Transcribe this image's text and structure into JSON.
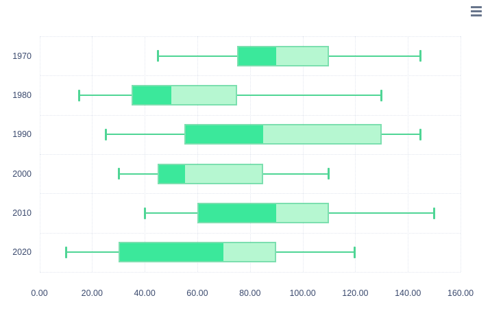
{
  "menu": {
    "icon": "hamburger-menu-icon"
  },
  "chart_data": {
    "type": "boxplot",
    "orientation": "horizontal",
    "title": "",
    "xlabel": "",
    "ylabel": "",
    "categories": [
      "1970",
      "1980",
      "1990",
      "2000",
      "2010",
      "2020"
    ],
    "series": [
      {
        "name": "boxplot",
        "stats_order": [
          "min",
          "q1",
          "median",
          "q3",
          "max"
        ],
        "values": [
          [
            45,
            75,
            90,
            110,
            145
          ],
          [
            15,
            35,
            50,
            75,
            130
          ],
          [
            25,
            55,
            85,
            130,
            145
          ],
          [
            30,
            45,
            55,
            85,
            110
          ],
          [
            40,
            60,
            90,
            110,
            150
          ],
          [
            10,
            30,
            70,
            90,
            120
          ]
        ]
      }
    ],
    "x_tick_labels": [
      "0.00",
      "20.00",
      "40.00",
      "60.00",
      "80.00",
      "100.00",
      "120.00",
      "140.00",
      "160.00"
    ],
    "x_tick_values": [
      0,
      20,
      40,
      60,
      80,
      100,
      120,
      140,
      160
    ],
    "xlim": [
      0,
      160
    ],
    "grid": true,
    "legend": "none",
    "colors": {
      "box_lower_fill": "#3be89b",
      "box_upper_fill": "#b6f7d1",
      "box_border": "rgba(80, 212, 148, 0.75)",
      "whisker": "#4fd595",
      "grid_line": "#e2e6ef",
      "axis_label": "#3b4a6e",
      "menu_icon": "#67748b",
      "background": "#ffffff"
    }
  }
}
